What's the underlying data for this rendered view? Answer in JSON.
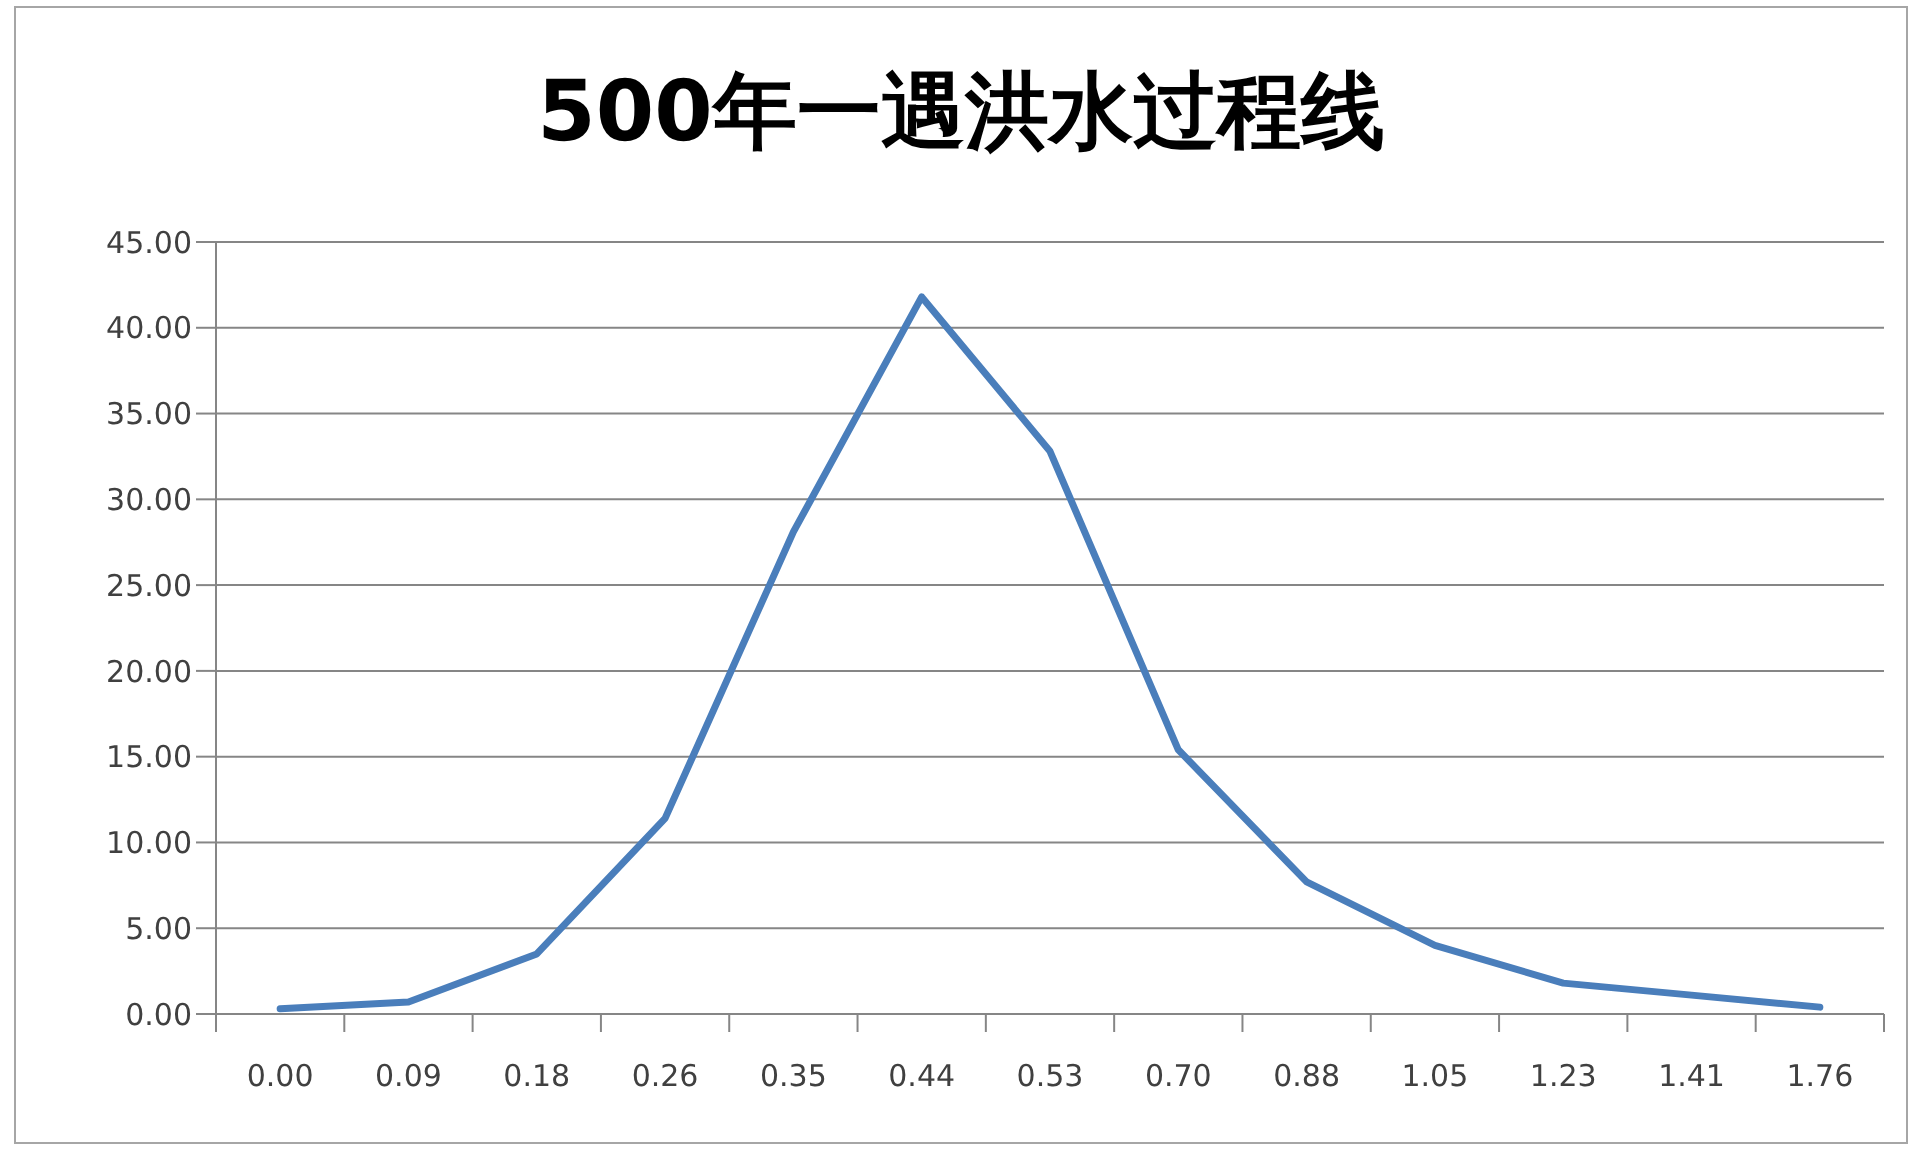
{
  "chart_data": {
    "type": "line",
    "title": "500年一遇洪水过程线",
    "categories": [
      "0.00",
      "0.09",
      "0.18",
      "0.26",
      "0.35",
      "0.44",
      "0.53",
      "0.70",
      "0.88",
      "1.05",
      "1.23",
      "1.41",
      "1.76"
    ],
    "values": [
      0.3,
      0.7,
      3.5,
      11.4,
      28.1,
      41.8,
      32.8,
      15.4,
      7.7,
      4.0,
      1.8,
      1.1,
      0.4
    ],
    "color": "#4a7ebb",
    "ylim": [
      0,
      45
    ],
    "yticks": [
      {
        "value": 0,
        "label": "0.00"
      },
      {
        "value": 5,
        "label": "5.00"
      },
      {
        "value": 10,
        "label": "10.00"
      },
      {
        "value": 15,
        "label": "15.00"
      },
      {
        "value": 20,
        "label": "20.00"
      },
      {
        "value": 25,
        "label": "25.00"
      },
      {
        "value": 30,
        "label": "30.00"
      },
      {
        "value": 35,
        "label": "35.00"
      },
      {
        "value": 40,
        "label": "40.00"
      },
      {
        "value": 45,
        "label": "45.00"
      }
    ],
    "grid": "y",
    "marker": "none",
    "line_style": "solid"
  }
}
